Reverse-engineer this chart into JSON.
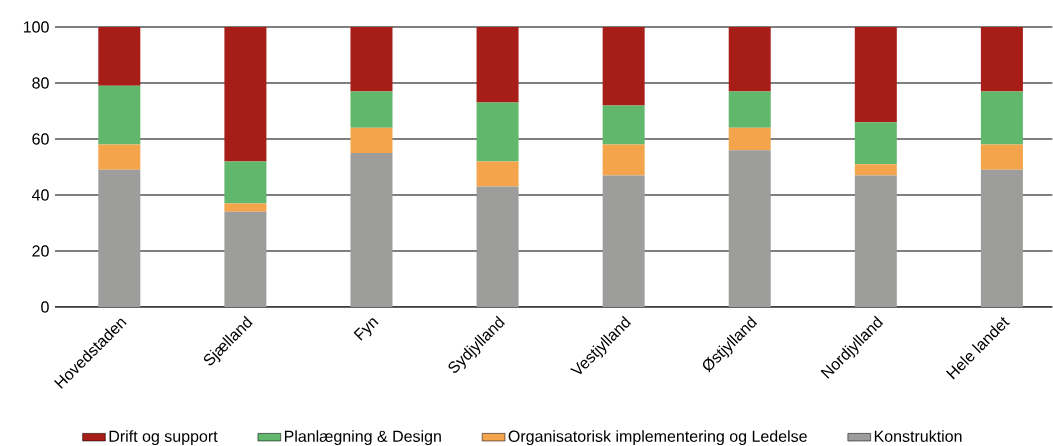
{
  "chart_data": {
    "type": "bar",
    "stacked": true,
    "categories": [
      "Hovedstaden",
      "Sjælland",
      "Fyn",
      "Sydjylland",
      "Vestjylland",
      "Østjylland",
      "Nordjylland",
      "Hele landet"
    ],
    "series": [
      {
        "name": "Konstruktion",
        "color": "#9d9d9c",
        "values": [
          49,
          34,
          55,
          43,
          47,
          56,
          47,
          49
        ]
      },
      {
        "name": "Organisatorisk implementering og Ledelse",
        "color": "#f4a54b",
        "values": [
          9,
          3,
          9,
          9,
          11,
          8,
          4,
          9
        ]
      },
      {
        "name": "Planlægning & Design",
        "color": "#61b76b",
        "values": [
          21,
          15,
          13,
          21,
          14,
          13,
          15,
          19
        ]
      },
      {
        "name": "Drift og support",
        "color": "#a61e17",
        "values": [
          21,
          48,
          23,
          27,
          28,
          23,
          34,
          23
        ]
      }
    ],
    "ylim": [
      0,
      100
    ],
    "yticks": [
      0,
      20,
      40,
      60,
      80,
      100
    ],
    "grid": "y",
    "legend": "bottom"
  }
}
